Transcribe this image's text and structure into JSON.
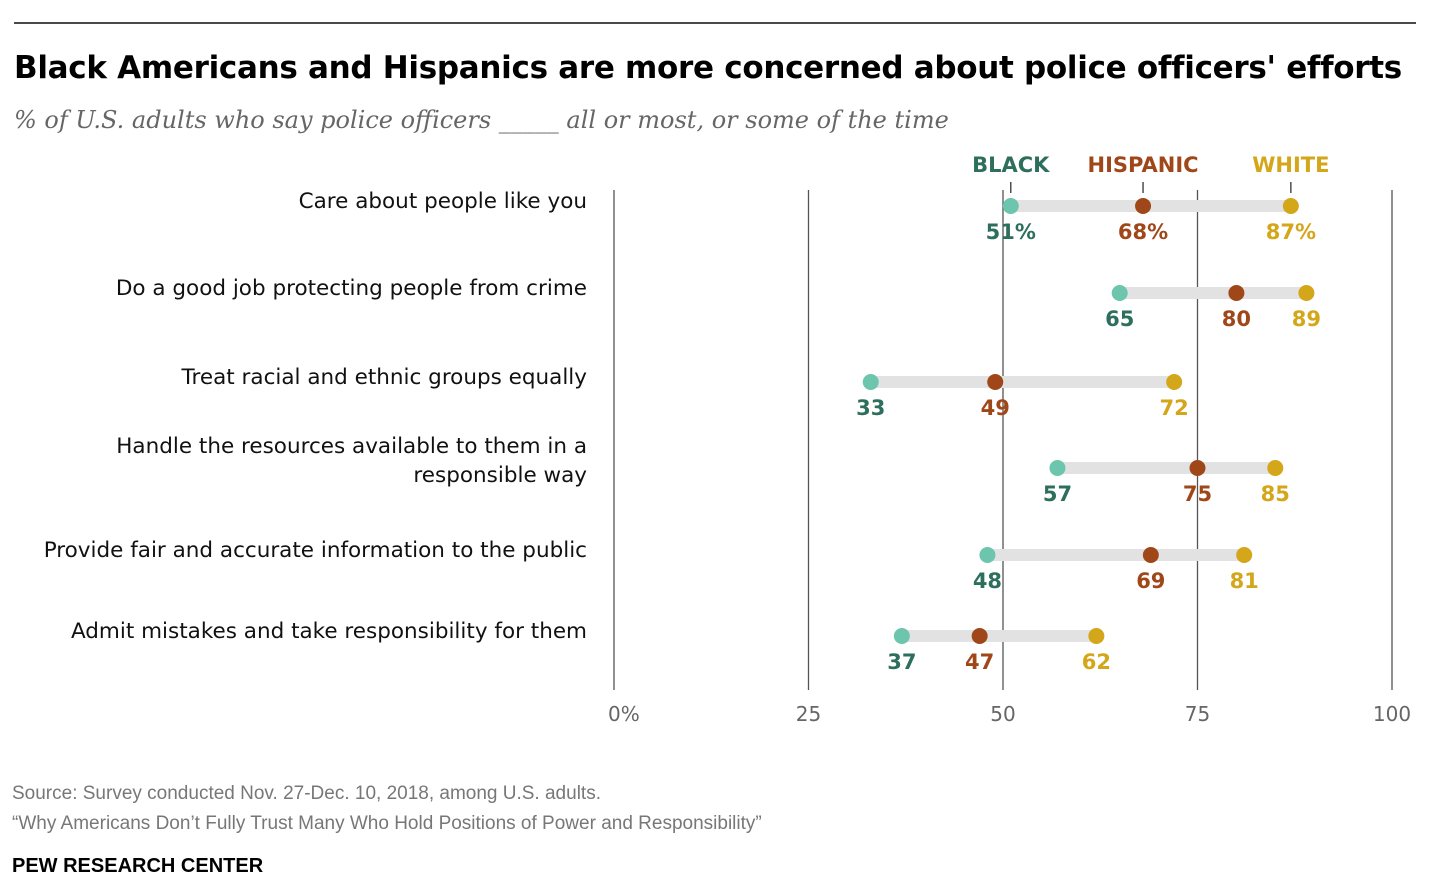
{
  "title": "Black Americans and Hispanics are more concerned about police officers' efforts",
  "subtitle": "% of U.S. adults who say police officers _____ all or most, or some of the time",
  "source": "Source: Survey conducted Nov. 27-Dec. 10, 2018, among U.S. adults.",
  "report": "“Why Americans Don’t Fully Trust Many Who Hold Positions of Power and Responsibility”",
  "organization": "PEW RESEARCH CENTER",
  "colors": {
    "black_dot": "#6cc5ac",
    "black_label": "#2e6e5c",
    "hispanic": "#a0471a",
    "white": "#d4a619",
    "connector": "#e2e2e2",
    "gridline": "#555555"
  },
  "chart_data": {
    "type": "dot-plot",
    "xlim": [
      0,
      100
    ],
    "x_ticks": [
      0,
      25,
      50,
      75,
      100
    ],
    "x_tick_labels": [
      "0%",
      "25",
      "50",
      "75",
      "100"
    ],
    "grid": true,
    "legend": "top",
    "series": [
      {
        "name": "BLACK",
        "first_label_suffix": "%"
      },
      {
        "name": "HISPANIC",
        "first_label_suffix": "%"
      },
      {
        "name": "WHITE",
        "first_label_suffix": "%"
      }
    ],
    "categories": [
      {
        "label": [
          "Care about people like you"
        ],
        "values": [
          51,
          68,
          87
        ]
      },
      {
        "label": [
          "Do a good job protecting people from crime"
        ],
        "values": [
          65,
          80,
          89
        ]
      },
      {
        "label": [
          "Treat racial and ethnic groups equally"
        ],
        "values": [
          33,
          49,
          72
        ]
      },
      {
        "label": [
          "Handle the resources available to them in a",
          "responsible way"
        ],
        "values": [
          57,
          75,
          85
        ]
      },
      {
        "label": [
          "Provide fair and accurate information to the public"
        ],
        "values": [
          48,
          69,
          81
        ]
      },
      {
        "label": [
          "Admit mistakes and take responsibility for them"
        ],
        "values": [
          37,
          47,
          62
        ]
      }
    ]
  }
}
